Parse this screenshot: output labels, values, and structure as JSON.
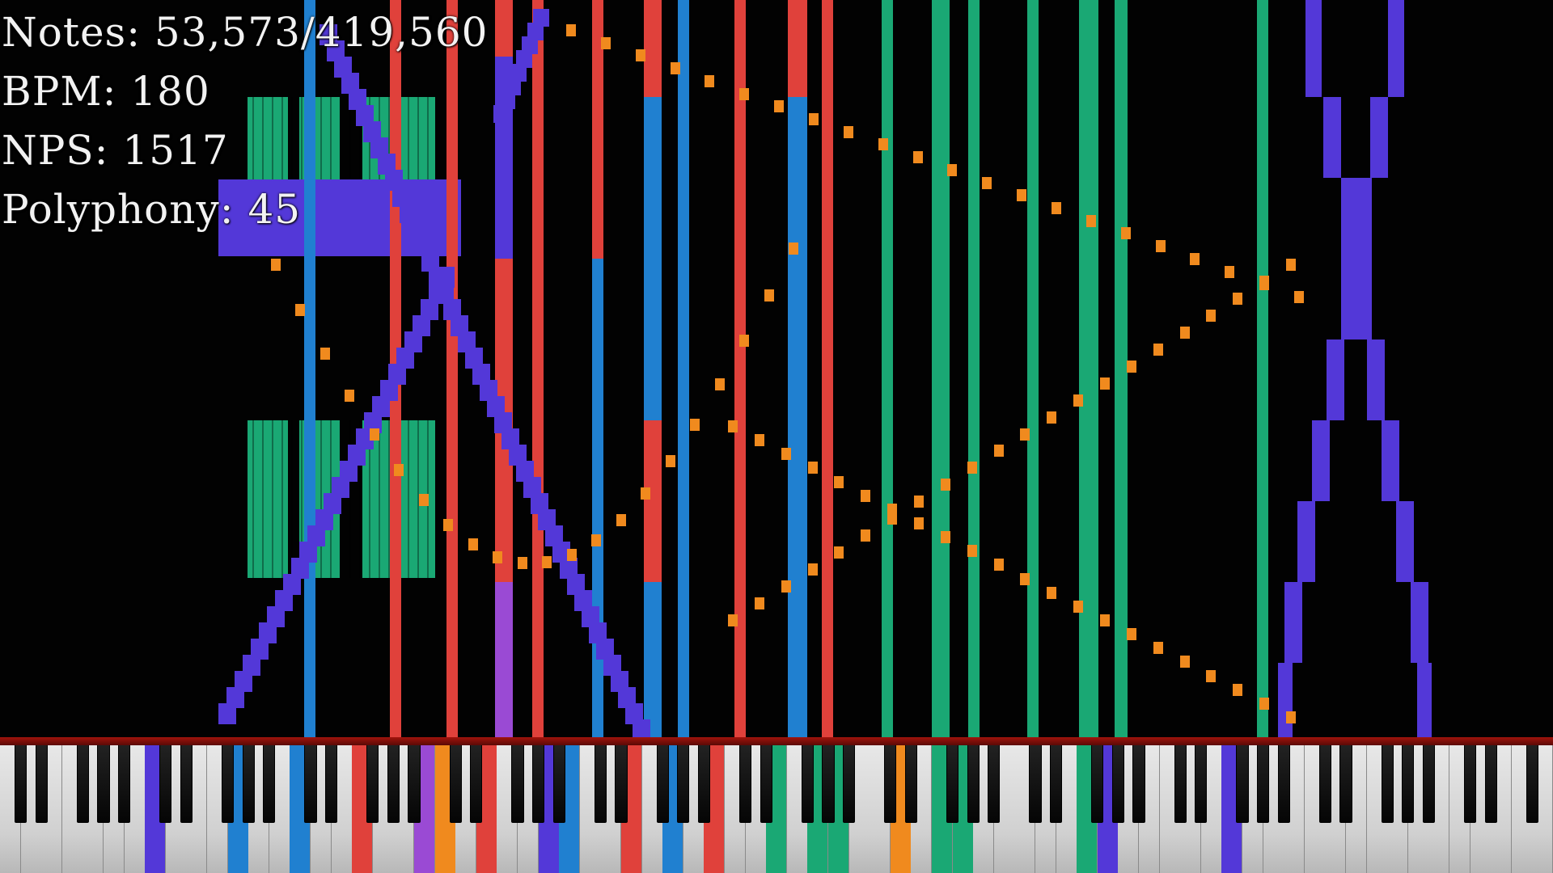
{
  "hud": {
    "notes_label": "Notes: 53,573/419,560",
    "bpm_label": "BPM: 180",
    "nps_label": "NPS: 1517",
    "polyphony_label": "Polyphony: 45"
  },
  "colors": {
    "background": "#000000",
    "blue": "#2080d0",
    "red": "#e0413b",
    "green": "#1aa874",
    "purple": "#5338d8",
    "violet": "#9a4ad4",
    "orange": "#f08a1e",
    "white_key": "#dcdcdc",
    "black_key": "#111111",
    "keyboard_line": "#a0140c"
  },
  "keyboard": {
    "white_key_count": 75,
    "active_keys": [
      {
        "key": 7,
        "color": "#5338d8"
      },
      {
        "key": 11,
        "color": "#2080d0"
      },
      {
        "key": 14,
        "color": "#2080d0"
      },
      {
        "key": 17,
        "color": "#e0413b"
      },
      {
        "key": 20,
        "color": "#9a4ad4"
      },
      {
        "key": 21,
        "color": "#f08a1e"
      },
      {
        "key": 23,
        "color": "#e0413b"
      },
      {
        "key": 26,
        "color": "#5338d8"
      },
      {
        "key": 27,
        "color": "#2080d0"
      },
      {
        "key": 30,
        "color": "#e0413b"
      },
      {
        "key": 32,
        "color": "#2080d0"
      },
      {
        "key": 34,
        "color": "#e0413b"
      },
      {
        "key": 37,
        "color": "#1aa874"
      },
      {
        "key": 39,
        "color": "#1aa874"
      },
      {
        "key": 40,
        "color": "#1aa874"
      },
      {
        "key": 43,
        "color": "#f08a1e"
      },
      {
        "key": 45,
        "color": "#1aa874"
      },
      {
        "key": 46,
        "color": "#1aa874"
      },
      {
        "key": 52,
        "color": "#1aa874"
      },
      {
        "key": 53,
        "color": "#5338d8"
      },
      {
        "key": 59,
        "color": "#5338d8"
      }
    ]
  }
}
